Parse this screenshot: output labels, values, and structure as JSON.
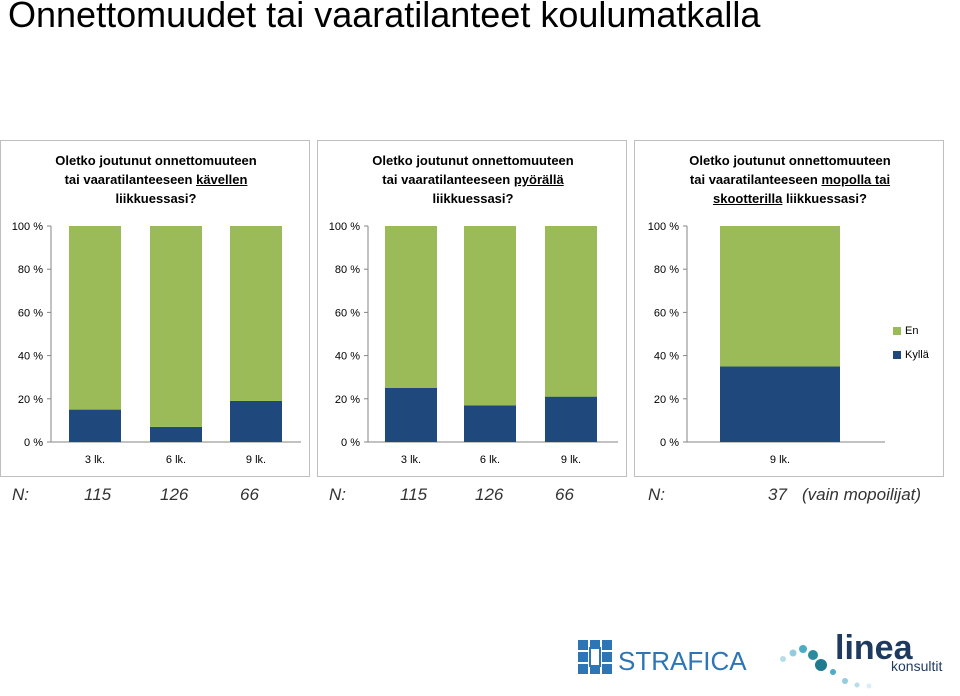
{
  "slide": {
    "title": "Onnettomuudet tai vaaratilanteet koulumatkalla"
  },
  "legend": [
    {
      "label": "En",
      "color": "#9bbb59"
    },
    {
      "label": "Kyllä",
      "color": "#1f497d"
    }
  ],
  "chart_data": [
    {
      "type": "bar",
      "stacked": true,
      "percent": true,
      "title_lines": [
        {
          "pre": "Oletko joutunut onnettomuuteen",
          "u": ""
        },
        {
          "pre": "tai vaaratilanteeseen ",
          "u": "kävellen"
        },
        {
          "pre": "liikkuessasi?",
          "u": ""
        }
      ],
      "categories": [
        "3 lk.",
        "6 lk.",
        "9 lk."
      ],
      "series": [
        {
          "name": "Kyllä",
          "values": [
            15,
            7,
            19
          ]
        },
        {
          "name": "En",
          "values": [
            85,
            93,
            81
          ]
        }
      ],
      "yticks": [
        "0 %",
        "20 %",
        "40 %",
        "60 %",
        "80 %",
        "100 %"
      ],
      "ylim": [
        0,
        100
      ],
      "n_label": "N:",
      "n_values": [
        "115",
        "126",
        "66"
      ]
    },
    {
      "type": "bar",
      "stacked": true,
      "percent": true,
      "title_lines": [
        {
          "pre": "Oletko joutunut onnettomuuteen",
          "u": ""
        },
        {
          "pre": "tai vaaratilanteeseen ",
          "u": "pyörällä"
        },
        {
          "pre": "liikkuessasi?",
          "u": ""
        }
      ],
      "categories": [
        "3 lk.",
        "6 lk.",
        "9 lk."
      ],
      "series": [
        {
          "name": "Kyllä",
          "values": [
            25,
            17,
            21
          ]
        },
        {
          "name": "En",
          "values": [
            75,
            83,
            79
          ]
        }
      ],
      "yticks": [
        "0 %",
        "20 %",
        "40 %",
        "60 %",
        "80 %",
        "100 %"
      ],
      "ylim": [
        0,
        100
      ],
      "n_label": "N:",
      "n_values": [
        "115",
        "126",
        "66"
      ]
    },
    {
      "type": "bar",
      "stacked": true,
      "percent": true,
      "title_lines": [
        {
          "pre": "Oletko joutunut onnettomuuteen",
          "u": ""
        },
        {
          "pre": "tai vaaratilanteeseen ",
          "u": "mopolla tai"
        },
        {
          "pre": "",
          "u": "skootterilla",
          "post": " liikkuessasi?"
        }
      ],
      "categories": [
        "9 lk."
      ],
      "series": [
        {
          "name": "Kyllä",
          "values": [
            35
          ]
        },
        {
          "name": "En",
          "values": [
            65
          ]
        }
      ],
      "yticks": [
        "0 %",
        "20 %",
        "40 %",
        "60 %",
        "80 %",
        "100 %"
      ],
      "ylim": [
        0,
        100
      ],
      "n_label": "N:",
      "n_values": [
        "37"
      ],
      "n_note": "(vain mopoilijat)"
    }
  ],
  "logos": {
    "strafica": "STRAFICA",
    "linea": "linea",
    "linea_sub": "konsultit"
  }
}
